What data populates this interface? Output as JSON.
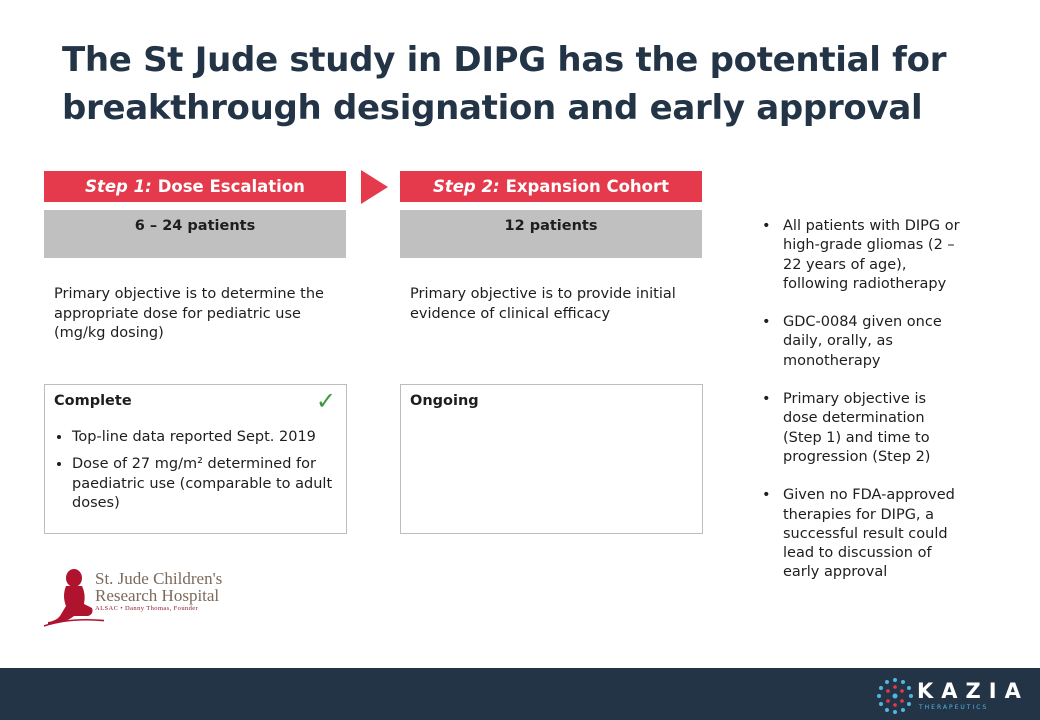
{
  "title": "The St Jude study in DIPG has the potential for breakthrough designation and early approval",
  "step1": {
    "num": "Step 1:",
    "label": "Dose Escalation",
    "patients": "6 – 24 patients",
    "objective": "Primary objective is to determine the appropriate dose for pediatric use (mg/kg dosing)",
    "status": "Complete",
    "bullets": [
      "Top-line data reported Sept. 2019",
      "Dose of 27 mg/m² determined for paediatric use (comparable to adult doses)"
    ]
  },
  "step2": {
    "num": "Step 2:",
    "label": "Expansion Cohort",
    "patients": "12 patients",
    "objective": "Primary objective is to provide initial evidence of clinical efficacy",
    "status": "Ongoing"
  },
  "right_bullets": [
    "All patients with DIPG or high-grade gliomas (2 – 22 years of age), following radiotherapy",
    "GDC-0084 given once daily, orally, as monotherapy",
    "Primary objective is dose determination (Step 1) and time to progression (Step 2)",
    "Given no FDA-approved therapies for DIPG, a successful result could lead to discussion of early approval"
  ],
  "logo": {
    "line1": "St. Jude Children's",
    "line2": "Research Hospital",
    "line3": "ALSAC • Danny Thomas, Founder"
  },
  "brand": {
    "name": "KAZIA",
    "sub": "THERAPEUTICS"
  },
  "colors": {
    "accent": "#e53a4b",
    "title": "#243447",
    "footer": "#243447",
    "check": "#3a9a3a"
  }
}
